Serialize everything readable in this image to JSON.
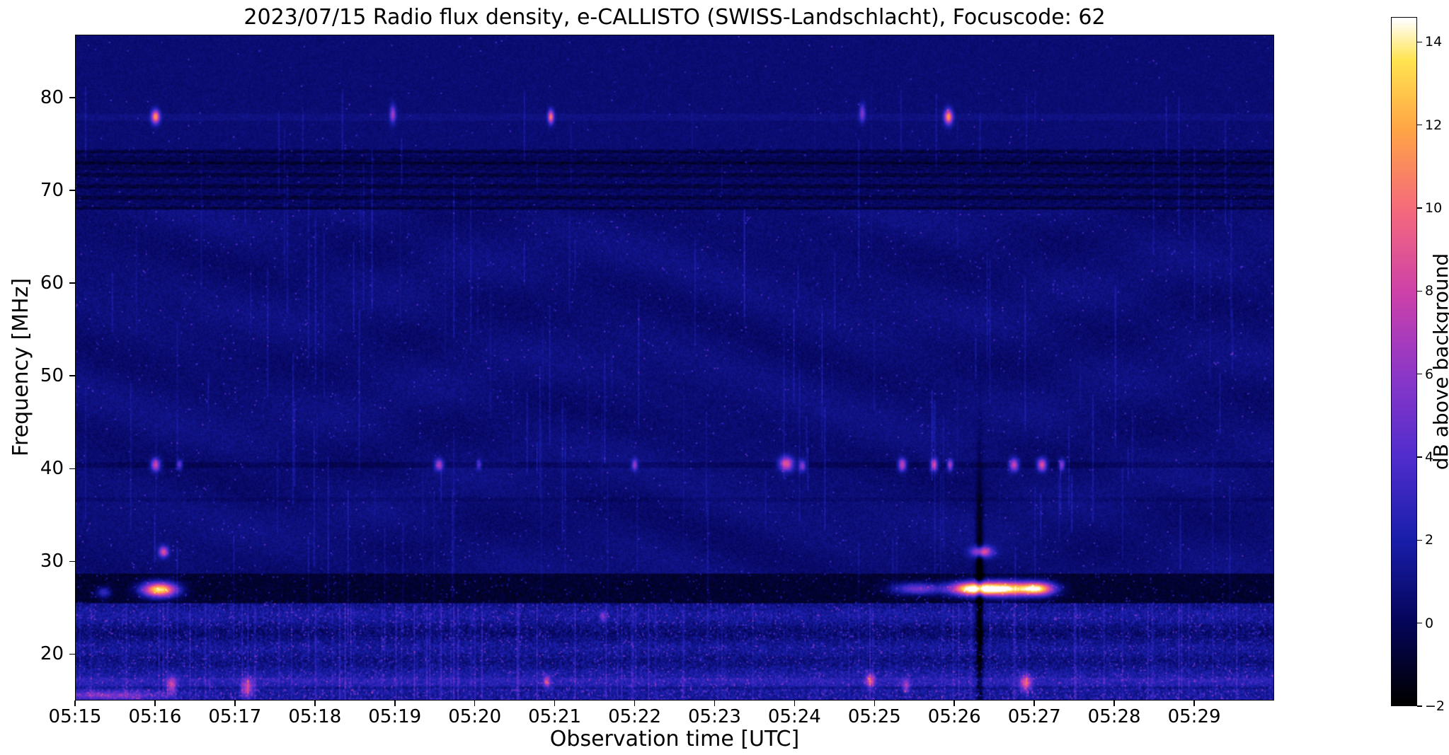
{
  "chart_data": {
    "type": "heatmap",
    "title": "2023/07/15  Radio flux density, e-CALLISTO (SWISS-Landschlacht), Focuscode: 62",
    "xlabel": "Observation time [UTC]",
    "ylabel": "Frequency [MHz]",
    "colorbar_label": "dB above background",
    "x_range_minutes": [
      15,
      30
    ],
    "x_tick_minutes": [
      15,
      16,
      17,
      18,
      19,
      20,
      21,
      22,
      23,
      24,
      25,
      26,
      27,
      28,
      29
    ],
    "x_tick_labels": [
      "05:15",
      "05:16",
      "05:17",
      "05:18",
      "05:19",
      "05:20",
      "05:21",
      "05:22",
      "05:23",
      "05:24",
      "05:25",
      "05:26",
      "05:27",
      "05:28",
      "05:29"
    ],
    "y_ticks_mhz": [
      20,
      30,
      40,
      50,
      60,
      70,
      80
    ],
    "freq_range_mhz": [
      15.0,
      86.8
    ],
    "value_range_db": [
      -2,
      14.6
    ],
    "colorbar_ticks_db": [
      -2,
      0,
      2,
      4,
      6,
      8,
      10,
      12,
      14
    ],
    "colorbar_tick_labels": [
      "−2",
      "0",
      "2",
      "4",
      "6",
      "8",
      "10",
      "12",
      "14"
    ],
    "grid": false,
    "legend": "colorbar-right",
    "colormap_stops": [
      [
        0.0,
        [
          0,
          0,
          0
        ]
      ],
      [
        0.12,
        [
          5,
          5,
          90
        ]
      ],
      [
        0.24,
        [
          25,
          30,
          170
        ]
      ],
      [
        0.36,
        [
          80,
          45,
          205
        ]
      ],
      [
        0.48,
        [
          140,
          55,
          200
        ]
      ],
      [
        0.6,
        [
          205,
          65,
          170
        ]
      ],
      [
        0.72,
        [
          245,
          105,
          125
        ]
      ],
      [
        0.84,
        [
          255,
          165,
          70
        ]
      ],
      [
        0.94,
        [
          255,
          228,
          80
        ]
      ],
      [
        1.0,
        [
          255,
          255,
          255
        ]
      ]
    ],
    "bands_format": "background noise bands: f1..f2 MHz with base level (dB), noise spread (dB), speckle probability",
    "bands": [
      {
        "f1": 15.0,
        "f2": 25.5,
        "base": 1.0,
        "noise": 1.7,
        "speckle": 0.05
      },
      {
        "f1": 25.5,
        "f2": 28.6,
        "base": -1.05,
        "noise": 1.0,
        "speckle": 0.025
      },
      {
        "f1": 28.6,
        "f2": 68.0,
        "base": 0.55,
        "noise": 0.75,
        "speckle": 0.008
      },
      {
        "f1": 68.0,
        "f2": 74.5,
        "base": 0.15,
        "noise": 0.8,
        "speckle": 0.004
      },
      {
        "f1": 74.5,
        "f2": 87.0,
        "base": 0.5,
        "noise": 0.6,
        "speckle": 0.003
      }
    ],
    "features_format": "[time_min_after_05:00, freq_MHz, width_min, height_MHz, amplitude_dB]",
    "features": [
      [
        16.0,
        78.0,
        0.07,
        1.0,
        11
      ],
      [
        18.97,
        78.3,
        0.05,
        1.3,
        6
      ],
      [
        20.95,
        78.0,
        0.05,
        1.0,
        10
      ],
      [
        24.85,
        78.4,
        0.05,
        1.3,
        5
      ],
      [
        25.93,
        78.0,
        0.07,
        1.1,
        11
      ],
      [
        15.35,
        26.6,
        0.12,
        0.8,
        4
      ],
      [
        16.05,
        26.9,
        0.3,
        1.1,
        15
      ],
      [
        25.55,
        27.0,
        0.45,
        0.9,
        6
      ],
      [
        26.2,
        27.0,
        0.35,
        1.0,
        13
      ],
      [
        26.6,
        27.0,
        0.5,
        1.1,
        16
      ],
      [
        27.05,
        27.0,
        0.3,
        1.0,
        13
      ],
      [
        16.0,
        40.4,
        0.08,
        0.9,
        8
      ],
      [
        16.3,
        40.4,
        0.05,
        0.7,
        5
      ],
      [
        19.55,
        40.4,
        0.07,
        0.8,
        7
      ],
      [
        20.05,
        40.4,
        0.04,
        0.7,
        4
      ],
      [
        22.0,
        40.4,
        0.05,
        0.8,
        6
      ],
      [
        23.9,
        40.5,
        0.12,
        1.0,
        9
      ],
      [
        24.1,
        40.3,
        0.06,
        0.8,
        6
      ],
      [
        25.35,
        40.4,
        0.07,
        0.9,
        8
      ],
      [
        25.75,
        40.4,
        0.06,
        0.9,
        8
      ],
      [
        25.95,
        40.4,
        0.05,
        0.8,
        7
      ],
      [
        26.75,
        40.4,
        0.08,
        0.9,
        8
      ],
      [
        27.1,
        40.4,
        0.08,
        0.9,
        9
      ],
      [
        27.35,
        40.4,
        0.05,
        0.8,
        6
      ],
      [
        16.1,
        31.0,
        0.08,
        0.8,
        8
      ],
      [
        26.35,
        31.0,
        0.18,
        0.8,
        9
      ],
      [
        16.2,
        16.6,
        0.08,
        1.2,
        6
      ],
      [
        17.15,
        16.3,
        0.1,
        1.4,
        6
      ],
      [
        20.9,
        17.0,
        0.06,
        1.0,
        5
      ],
      [
        24.95,
        17.1,
        0.08,
        1.0,
        6
      ],
      [
        25.4,
        16.5,
        0.06,
        1.0,
        5
      ],
      [
        26.9,
        16.8,
        0.1,
        1.2,
        7
      ],
      [
        21.6,
        24.0,
        0.05,
        0.8,
        4
      ],
      [
        26.32,
        25.0,
        0.06,
        18.0,
        -4
      ],
      [
        15.45,
        15.5,
        0.9,
        0.7,
        4
      ]
    ]
  }
}
